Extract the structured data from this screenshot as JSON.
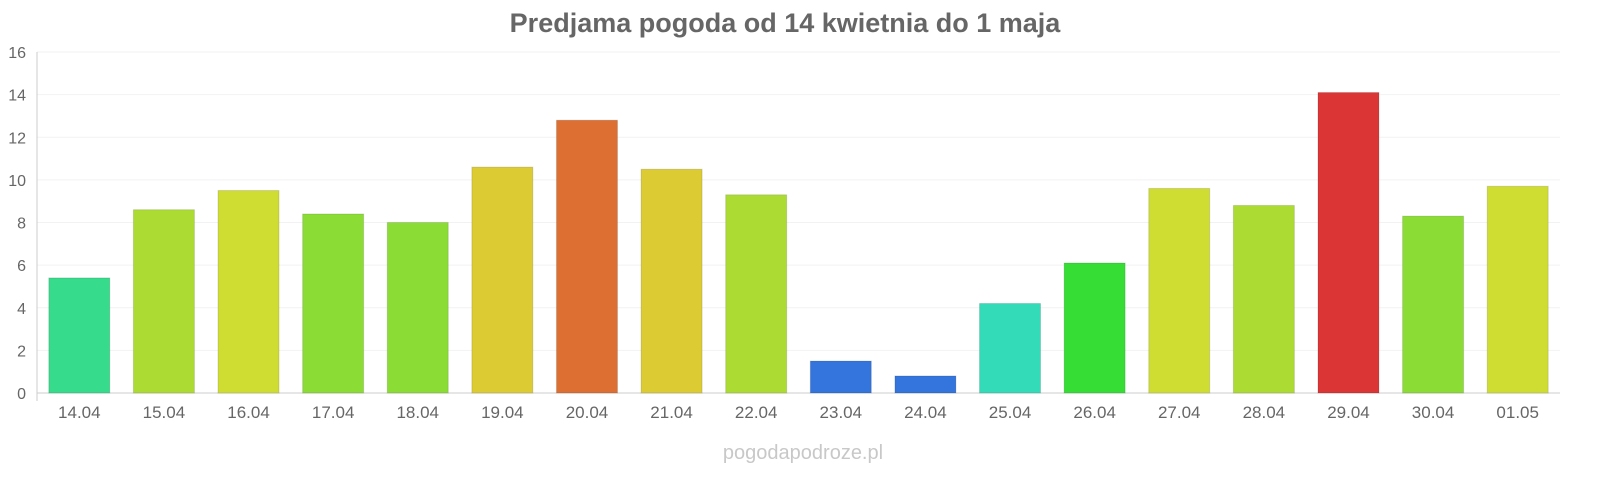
{
  "chart_data": {
    "type": "bar",
    "title": "Predjama pogoda od 14 kwietnia do 1 maja",
    "xlabel": "",
    "ylabel": "",
    "ylim": [
      0,
      16
    ],
    "yticks": [
      0,
      2,
      4,
      6,
      8,
      10,
      12,
      14,
      16
    ],
    "grid": true,
    "categories": [
      "14.04",
      "15.04",
      "16.04",
      "17.04",
      "18.04",
      "19.04",
      "20.04",
      "21.04",
      "22.04",
      "23.04",
      "24.04",
      "25.04",
      "26.04",
      "27.04",
      "28.04",
      "29.04",
      "30.04",
      "01.05"
    ],
    "values": [
      5.4,
      8.6,
      9.5,
      8.4,
      8.0,
      10.6,
      12.8,
      10.5,
      9.3,
      1.5,
      0.8,
      4.2,
      6.1,
      9.6,
      8.8,
      14.1,
      8.3,
      9.7
    ],
    "colors": [
      "#36db8b",
      "#acdc33",
      "#cfdd33",
      "#8bdc35",
      "#8bdc35",
      "#dccb33",
      "#dd6f33",
      "#dccb33",
      "#acdc33",
      "#3375dc",
      "#3375dc",
      "#33dbb8",
      "#35dd35",
      "#cfdd33",
      "#acdc33",
      "#dc3535",
      "#8bdc35",
      "#cfdd33"
    ]
  },
  "watermark": "pogodapodroze.pl"
}
